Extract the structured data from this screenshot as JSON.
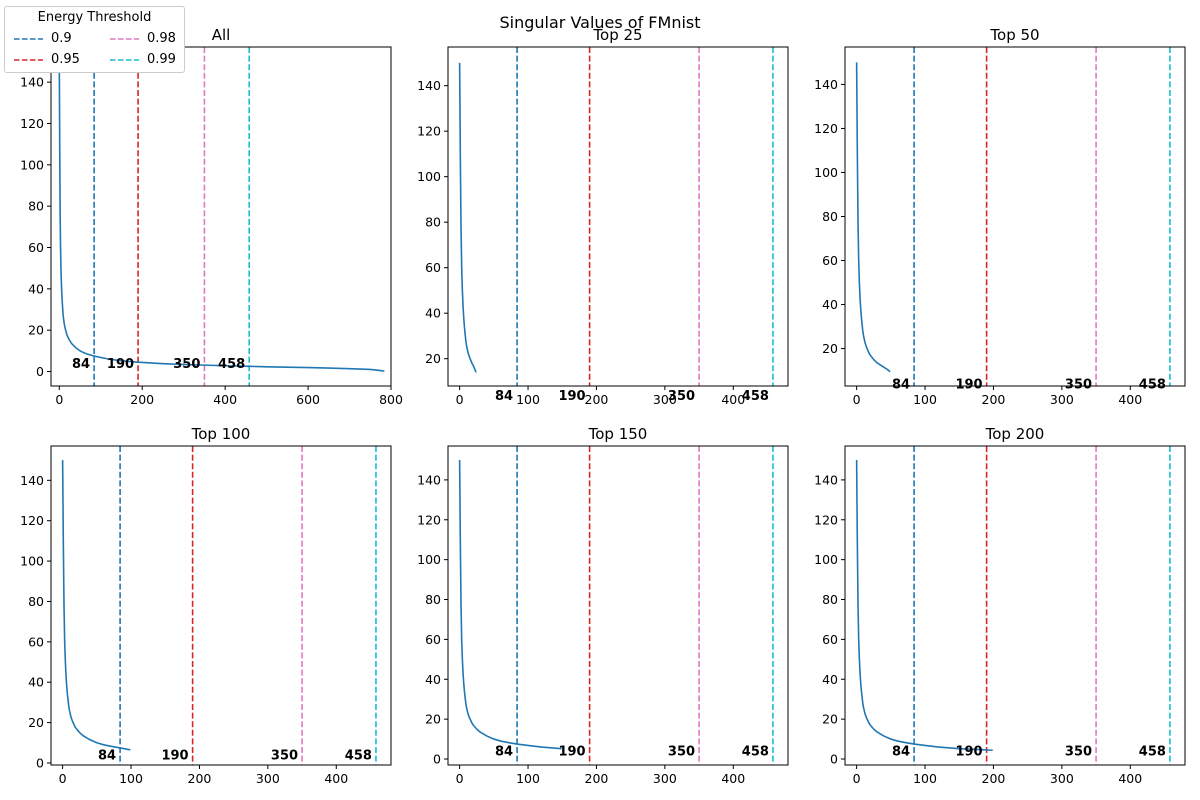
{
  "suptitle": "Singular Values of FMnist",
  "legend": {
    "title": "Energy Threshold",
    "entries": [
      {
        "label": "0.9",
        "color": "#1f77b4"
      },
      {
        "label": "0.95",
        "color": "#d62728"
      },
      {
        "label": "0.98",
        "color": "#e377c2"
      },
      {
        "label": "0.99",
        "color": "#17becf"
      }
    ]
  },
  "chart_data": [
    {
      "type": "line",
      "title": "All",
      "xlim": [
        -20,
        800
      ],
      "ylim": [
        -7,
        157
      ],
      "xticks": [
        0,
        200,
        400,
        600,
        800
      ],
      "yticks": [
        0,
        20,
        40,
        60,
        80,
        100,
        120,
        140
      ],
      "series": [
        {
          "color": "#1f77b4",
          "x": [
            0,
            1,
            2,
            3,
            4,
            5,
            6,
            7,
            8,
            9,
            10,
            12,
            14,
            16,
            18,
            20,
            25,
            30,
            40,
            50,
            60,
            70,
            84,
            100,
            120,
            150,
            190,
            250,
            300,
            350,
            400,
            458,
            500,
            550,
            600,
            650,
            700,
            750,
            770,
            784
          ],
          "y": [
            150,
            110,
            78,
            60,
            50,
            43,
            38,
            34,
            31,
            28,
            26,
            23,
            21,
            19.5,
            18,
            17,
            15,
            13.5,
            11.5,
            10,
            9,
            8.3,
            7.5,
            6.8,
            6,
            5.2,
            4.5,
            3.8,
            3.4,
            3.1,
            2.8,
            2.5,
            2.3,
            2.1,
            1.9,
            1.7,
            1.4,
            1.0,
            0.6,
            0.2
          ]
        }
      ],
      "thresholds": [
        84,
        190,
        350,
        458
      ],
      "annotations": [
        {
          "x": 84,
          "y": 2,
          "text": "84"
        },
        {
          "x": 190,
          "y": 2,
          "text": "190"
        },
        {
          "x": 350,
          "y": 2,
          "text": "350"
        },
        {
          "x": 458,
          "y": 2,
          "text": "458"
        }
      ]
    },
    {
      "type": "line",
      "title": "Top 25",
      "xlim": [
        -17,
        480
      ],
      "ylim": [
        8,
        157
      ],
      "xticks": [
        0,
        100,
        200,
        300,
        400
      ],
      "yticks": [
        20,
        40,
        60,
        80,
        100,
        120,
        140
      ],
      "series": [
        {
          "color": "#1f77b4",
          "x": [
            0,
            1,
            2,
            3,
            4,
            5,
            6,
            7,
            8,
            9,
            10,
            12,
            14,
            16,
            18,
            20,
            22,
            24
          ],
          "y": [
            150,
            110,
            78,
            60,
            50,
            43,
            38,
            34,
            31,
            28,
            26,
            23,
            21,
            19.5,
            18,
            17,
            15.5,
            14
          ]
        }
      ],
      "thresholds": [
        84,
        190,
        350,
        458
      ],
      "annotations": [
        {
          "x": 84,
          "y": 2,
          "text": "84"
        },
        {
          "x": 190,
          "y": 2,
          "text": "190"
        },
        {
          "x": 350,
          "y": 2,
          "text": "350"
        },
        {
          "x": 458,
          "y": 2,
          "text": "458"
        }
      ]
    },
    {
      "type": "line",
      "title": "Top 50",
      "xlim": [
        -17,
        480
      ],
      "ylim": [
        3,
        157
      ],
      "xticks": [
        0,
        100,
        200,
        300,
        400
      ],
      "yticks": [
        20,
        40,
        60,
        80,
        100,
        120,
        140
      ],
      "series": [
        {
          "color": "#1f77b4",
          "x": [
            0,
            1,
            2,
            3,
            4,
            5,
            6,
            7,
            8,
            9,
            10,
            12,
            14,
            16,
            18,
            20,
            25,
            30,
            35,
            40,
            45,
            49
          ],
          "y": [
            150,
            110,
            78,
            60,
            50,
            43,
            38,
            34,
            31,
            28,
            26,
            23,
            21,
            19.5,
            18,
            17,
            15,
            13.5,
            12.5,
            11.5,
            10.5,
            9.5
          ]
        }
      ],
      "thresholds": [
        84,
        190,
        350,
        458
      ],
      "annotations": [
        {
          "x": 84,
          "y": 2,
          "text": "84"
        },
        {
          "x": 190,
          "y": 2,
          "text": "190"
        },
        {
          "x": 350,
          "y": 2,
          "text": "350"
        },
        {
          "x": 458,
          "y": 2,
          "text": "458"
        }
      ]
    },
    {
      "type": "line",
      "title": "Top 100",
      "xlim": [
        -17,
        480
      ],
      "ylim": [
        -1,
        157
      ],
      "xticks": [
        0,
        100,
        200,
        300,
        400
      ],
      "yticks": [
        0,
        20,
        40,
        60,
        80,
        100,
        120,
        140
      ],
      "series": [
        {
          "color": "#1f77b4",
          "x": [
            0,
            1,
            2,
            3,
            4,
            5,
            6,
            7,
            8,
            9,
            10,
            12,
            14,
            16,
            18,
            20,
            25,
            30,
            40,
            50,
            60,
            70,
            80,
            90,
            99
          ],
          "y": [
            150,
            110,
            78,
            60,
            50,
            43,
            38,
            34,
            31,
            28,
            26,
            23,
            21,
            19.5,
            18,
            17,
            15,
            13.5,
            11.5,
            10,
            9,
            8.3,
            7.7,
            7.1,
            6.5
          ]
        }
      ],
      "thresholds": [
        84,
        190,
        350,
        458
      ],
      "annotations": [
        {
          "x": 84,
          "y": 2,
          "text": "84"
        },
        {
          "x": 190,
          "y": 2,
          "text": "190"
        },
        {
          "x": 350,
          "y": 2,
          "text": "350"
        },
        {
          "x": 458,
          "y": 2,
          "text": "458"
        }
      ]
    },
    {
      "type": "line",
      "title": "Top 150",
      "xlim": [
        -17,
        480
      ],
      "ylim": [
        -3,
        157
      ],
      "xticks": [
        0,
        100,
        200,
        300,
        400
      ],
      "yticks": [
        0,
        20,
        40,
        60,
        80,
        100,
        120,
        140
      ],
      "series": [
        {
          "color": "#1f77b4",
          "x": [
            0,
            1,
            2,
            3,
            4,
            5,
            6,
            7,
            8,
            9,
            10,
            12,
            14,
            16,
            18,
            20,
            25,
            30,
            40,
            50,
            60,
            70,
            84,
            100,
            120,
            149
          ],
          "y": [
            150,
            110,
            78,
            60,
            50,
            43,
            38,
            34,
            31,
            28,
            26,
            23,
            21,
            19.5,
            18,
            17,
            15,
            13.5,
            11.5,
            10,
            9,
            8.3,
            7.5,
            6.8,
            6,
            5.2
          ]
        }
      ],
      "thresholds": [
        84,
        190,
        350,
        458
      ],
      "annotations": [
        {
          "x": 84,
          "y": 2,
          "text": "84"
        },
        {
          "x": 190,
          "y": 2,
          "text": "190"
        },
        {
          "x": 350,
          "y": 2,
          "text": "350"
        },
        {
          "x": 458,
          "y": 2,
          "text": "458"
        }
      ]
    },
    {
      "type": "line",
      "title": "Top 200",
      "xlim": [
        -17,
        480
      ],
      "ylim": [
        -3,
        157
      ],
      "xticks": [
        0,
        100,
        200,
        300,
        400
      ],
      "yticks": [
        0,
        20,
        40,
        60,
        80,
        100,
        120,
        140
      ],
      "series": [
        {
          "color": "#1f77b4",
          "x": [
            0,
            1,
            2,
            3,
            4,
            5,
            6,
            7,
            8,
            9,
            10,
            12,
            14,
            16,
            18,
            20,
            25,
            30,
            40,
            50,
            60,
            70,
            84,
            100,
            120,
            150,
            175,
            199
          ],
          "y": [
            150,
            110,
            78,
            60,
            50,
            43,
            38,
            34,
            31,
            28,
            26,
            23,
            21,
            19.5,
            18,
            17,
            15,
            13.5,
            11.5,
            10,
            9,
            8.3,
            7.5,
            6.8,
            6,
            5.2,
            4.8,
            4.4
          ]
        }
      ],
      "thresholds": [
        84,
        190,
        350,
        458
      ],
      "annotations": [
        {
          "x": 84,
          "y": 2,
          "text": "84"
        },
        {
          "x": 190,
          "y": 2,
          "text": "190"
        },
        {
          "x": 350,
          "y": 2,
          "text": "350"
        },
        {
          "x": 458,
          "y": 2,
          "text": "458"
        }
      ]
    }
  ]
}
